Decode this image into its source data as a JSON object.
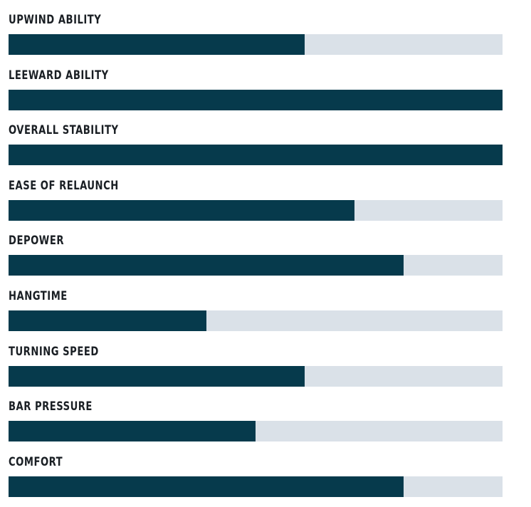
{
  "chart_data": {
    "type": "bar",
    "orientation": "horizontal",
    "categories": [
      "UPWIND ABILITY",
      "LEEWARD ABILITY",
      "OVERALL STABILITY",
      "EASE OF RELAUNCH",
      "DEPOWER",
      "HANGTIME",
      "TURNING SPEED",
      "BAR PRESSURE",
      "COMFORT"
    ],
    "values": [
      6,
      10,
      10,
      7,
      8,
      4,
      6,
      5,
      8
    ],
    "xlim": [
      0,
      10
    ],
    "grid": false,
    "colors": {
      "fill": "#063a4c",
      "track": "#dae1e8",
      "label": "#1a1f24"
    }
  }
}
